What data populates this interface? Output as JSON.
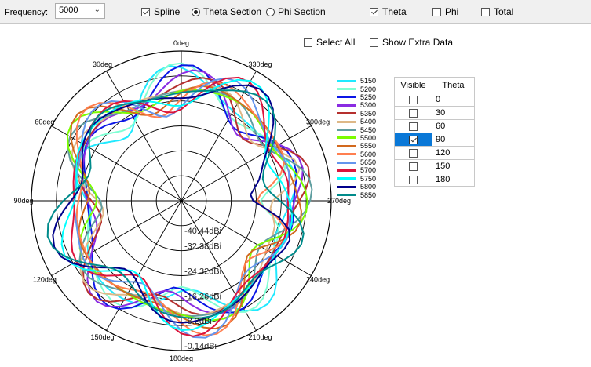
{
  "toolbar": {
    "frequency_label": "Frequency:",
    "frequency_value": "5000",
    "spline_label": "Spline",
    "spline_checked": true,
    "theta_section_label": "Theta Section",
    "phi_section_label": "Phi Section",
    "section_selected": "theta",
    "theta_label": "Theta",
    "theta_checked": true,
    "phi_label": "Phi",
    "phi_checked": false,
    "total_label": "Total",
    "total_checked": false
  },
  "options": {
    "select_all_label": "Select All",
    "select_all_checked": false,
    "show_extra_label": "Show Extra Data",
    "show_extra_checked": false
  },
  "polar": {
    "angle_labels": [
      "0deg",
      "330deg",
      "300deg",
      "270deg",
      "240deg",
      "210deg",
      "180deg",
      "150deg",
      "120deg",
      "90deg",
      "60deg",
      "30deg"
    ],
    "ring_labels": [
      "-40.44dBi",
      "-32.38dBi",
      "-24.32dBi",
      "-16.26dBi",
      "-8.2dBi",
      "-0.14dBi"
    ]
  },
  "legend": [
    {
      "label": "5150",
      "color": "#1fe9ff"
    },
    {
      "label": "5200",
      "color": "#7fffd4"
    },
    {
      "label": "5250",
      "color": "#0b16e6"
    },
    {
      "label": "5300",
      "color": "#8a2be2"
    },
    {
      "label": "5350",
      "color": "#b5302e"
    },
    {
      "label": "5400",
      "color": "#deb887"
    },
    {
      "label": "5450",
      "color": "#5f9ea0"
    },
    {
      "label": "5500",
      "color": "#7cfc00"
    },
    {
      "label": "5550",
      "color": "#d2691e"
    },
    {
      "label": "5600",
      "color": "#ff7f50"
    },
    {
      "label": "5650",
      "color": "#6495ed"
    },
    {
      "label": "5700",
      "color": "#dc143c"
    },
    {
      "label": "5750",
      "color": "#00ffff"
    },
    {
      "label": "5800",
      "color": "#00008b"
    },
    {
      "label": "5850",
      "color": "#008b8b"
    }
  ],
  "table": {
    "headers": [
      "Visible",
      "Theta"
    ],
    "rows": [
      {
        "visible": false,
        "theta": "0"
      },
      {
        "visible": false,
        "theta": "30"
      },
      {
        "visible": false,
        "theta": "60"
      },
      {
        "visible": true,
        "theta": "90"
      },
      {
        "visible": false,
        "theta": "120"
      },
      {
        "visible": false,
        "theta": "150"
      },
      {
        "visible": false,
        "theta": "180"
      }
    ]
  }
}
